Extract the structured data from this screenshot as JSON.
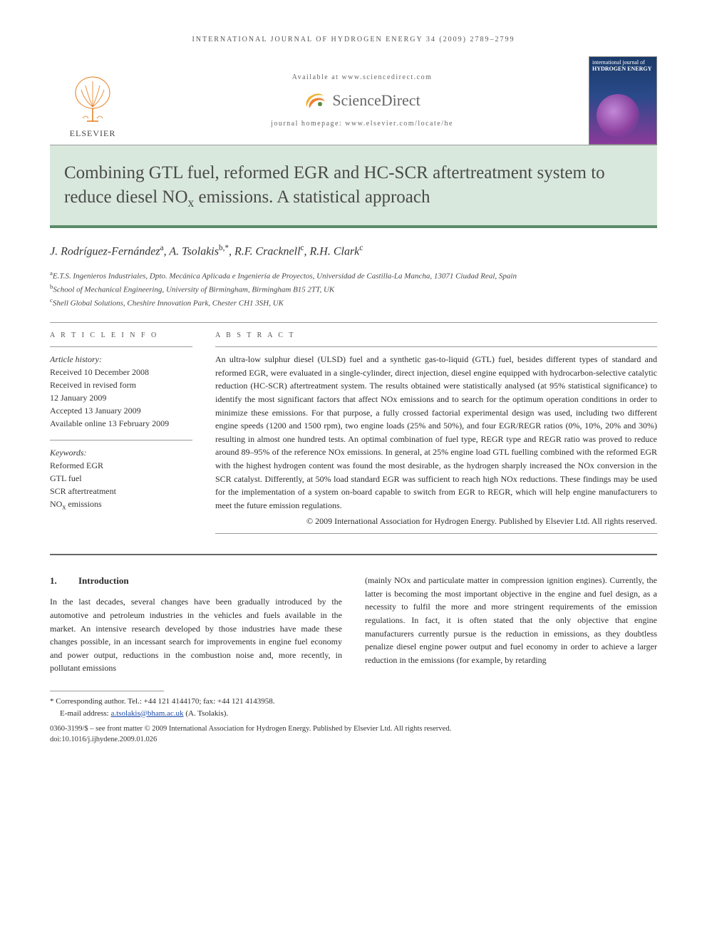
{
  "running_head": "INTERNATIONAL JOURNAL OF HYDROGEN ENERGY 34 (2009) 2789–2799",
  "masthead": {
    "publisher": "ELSEVIER",
    "available_at": "Available at www.sciencedirect.com",
    "platform": "ScienceDirect",
    "homepage_label": "journal homepage: www.elsevier.com/locate/he",
    "cover_label_top": "international journal of",
    "cover_label_main": "HYDROGEN ENERGY"
  },
  "title_parts": {
    "line": "Combining GTL fuel, reformed EGR and HC-SCR aftertreatment system to reduce diesel NO",
    "sub": "x",
    "tail": " emissions. A statistical approach"
  },
  "authors_html": "J. Rodríguez-Fernández<sup>a</sup>, A. Tsolakis<sup>b,*</sup>, R.F. Cracknell<sup>c</sup>, R.H. Clark<sup>c</sup>",
  "affiliations": [
    {
      "key": "a",
      "text": "E.T.S. Ingenieros Industriales, Dpto. Mecánica Aplicada e Ingeniería de Proyectos, Universidad de Castilla-La Mancha, 13071 Ciudad Real, Spain"
    },
    {
      "key": "b",
      "text": "School of Mechanical Engineering, University of Birmingham, Birmingham B15 2TT, UK"
    },
    {
      "key": "c",
      "text": "Shell Global Solutions, Cheshire Innovation Park, Chester CH1 3SH, UK"
    }
  ],
  "info_label": "A R T I C L E   I N F O",
  "abstract_label": "A B S T R A C T",
  "history_label": "Article history:",
  "history": [
    "Received 10 December 2008",
    "Received in revised form",
    "12 January 2009",
    "Accepted 13 January 2009",
    "Available online 13 February 2009"
  ],
  "keywords_label": "Keywords:",
  "keywords": [
    "Reformed EGR",
    "GTL fuel",
    "SCR aftertreatment",
    "NOx emissions"
  ],
  "abstract": "An ultra-low sulphur diesel (ULSD) fuel and a synthetic gas-to-liquid (GTL) fuel, besides different types of standard and reformed EGR, were evaluated in a single-cylinder, direct injection, diesel engine equipped with hydrocarbon-selective catalytic reduction (HC-SCR) aftertreatment system. The results obtained were statistically analysed (at 95% statistical significance) to identify the most significant factors that affect NOx emissions and to search for the optimum operation conditions in order to minimize these emissions. For that purpose, a fully crossed factorial experimental design was used, including two different engine speeds (1200 and 1500 rpm), two engine loads (25% and 50%), and four EGR/REGR ratios (0%, 10%, 20% and 30%) resulting in almost one hundred tests. An optimal combination of fuel type, REGR type and REGR ratio was proved to reduce around 89–95% of the reference NOx emissions. In general, at 25% engine load GTL fuelling combined with the reformed EGR with the highest hydrogen content was found the most desirable, as the hydrogen sharply increased the NOx conversion in the SCR catalyst. Differently, at 50% load standard EGR was sufficient to reach high NOx reductions. These findings may be used for the implementation of a system on-board capable to switch from EGR to REGR, which will help engine manufacturers to meet the future emission regulations.",
  "copyright": "© 2009 International Association for Hydrogen Energy. Published by Elsevier Ltd. All rights reserved.",
  "section": {
    "num": "1.",
    "title": "Introduction"
  },
  "body_col1": "In the last decades, several changes have been gradually introduced by the automotive and petroleum industries in the vehicles and fuels available in the market. An intensive research developed by those industries have made these changes possible, in an incessant search for improvements in engine fuel economy and power output, reductions in the combustion noise and, more recently, in pollutant emissions",
  "body_col2": "(mainly NOx and particulate matter in compression ignition engines). Currently, the latter is becoming the most important objective in the engine and fuel design, as a necessity to fulfil the more and more stringent requirements of the emission regulations. In fact, it is often stated that the only objective that engine manufacturers currently pursue is the reduction in emissions, as they doubtless penalize diesel engine power output and fuel economy in order to achieve a larger reduction in the emissions (for example, by retarding",
  "footnote": {
    "corr_label": "* Corresponding author. Tel.: +44 121 4144170; fax: +44 121 4143958.",
    "email_label": "E-mail address:",
    "email": "a.tsolakis@bham.ac.uk",
    "email_tail": "(A. Tsolakis)."
  },
  "footer": {
    "line1": "0360-3199/$ – see front matter © 2009 International Association for Hydrogen Energy. Published by Elsevier Ltd. All rights reserved.",
    "line2": "doi:10.1016/j.ijhydene.2009.01.026"
  },
  "colors": {
    "title_band_bg": "#d9e8dc",
    "title_band_border": "#5a8a6a",
    "link": "#1a4aaa",
    "elsevier_orange": "#e67a1a",
    "sd_orange": "#f08030"
  }
}
